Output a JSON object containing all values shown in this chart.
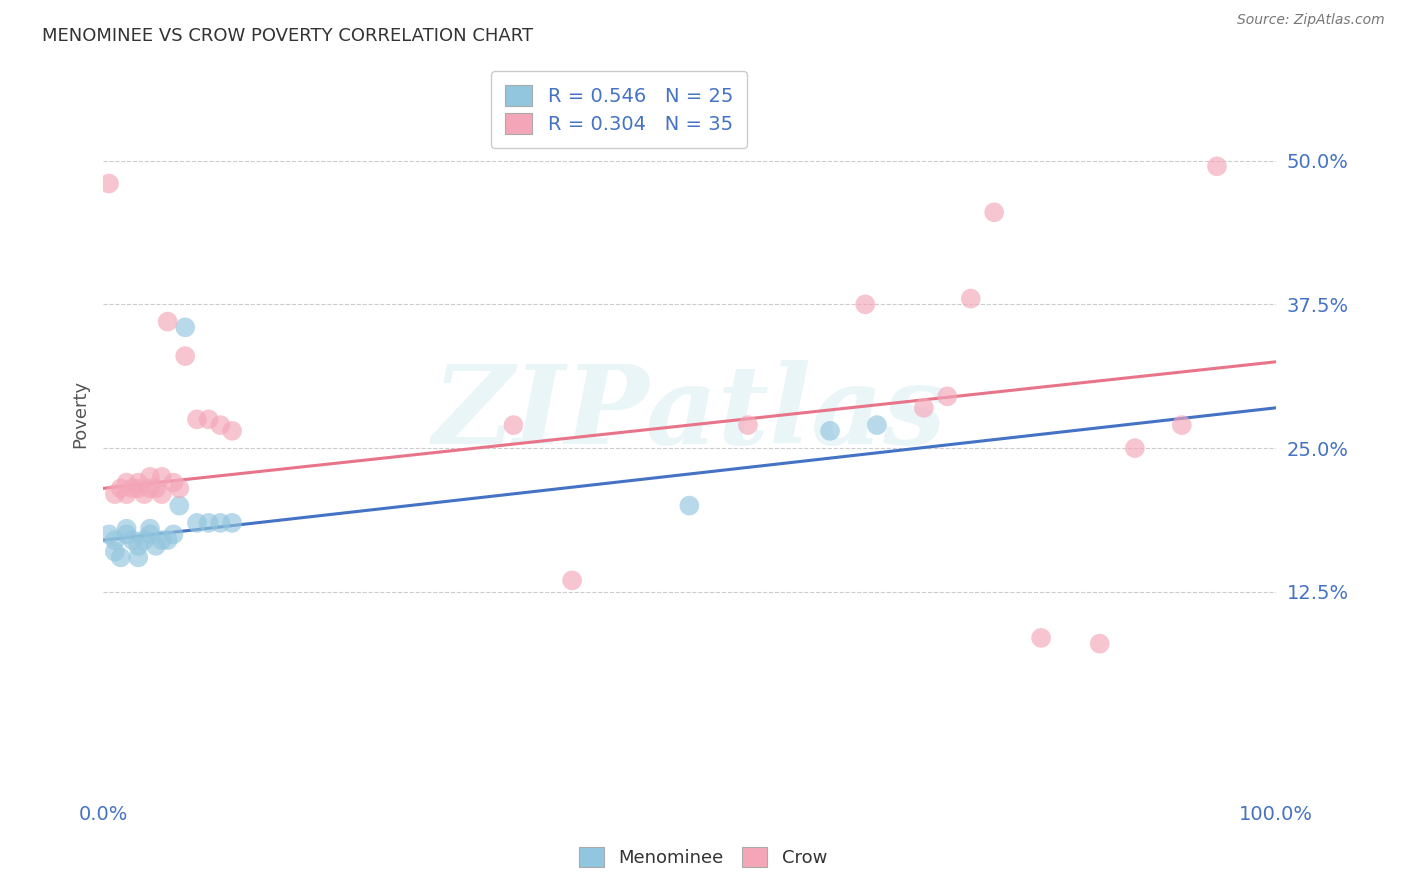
{
  "title": "MENOMINEE VS CROW POVERTY CORRELATION CHART",
  "source": "Source: ZipAtlas.com",
  "ylabel": "Poverty",
  "y_ticks": [
    0.125,
    0.25,
    0.375,
    0.5
  ],
  "y_tick_labels": [
    "12.5%",
    "25.0%",
    "37.5%",
    "50.0%"
  ],
  "watermark": "ZIPatlas",
  "menominee_R": 0.546,
  "menominee_N": 25,
  "crow_R": 0.304,
  "crow_N": 35,
  "menominee_color": "#92c5de",
  "crow_color": "#f4a6b8",
  "menominee_line_color": "#4472c4",
  "crow_line_color": "#e8748a",
  "legend_menominee_label": "Menominee",
  "legend_crow_label": "Crow",
  "background_color": "#ffffff",
  "grid_color": "#cccccc",
  "menominee_x": [
    0.005,
    0.01,
    0.01,
    0.015,
    0.02,
    0.02,
    0.025,
    0.03,
    0.03,
    0.035,
    0.04,
    0.04,
    0.045,
    0.05,
    0.055,
    0.06,
    0.065,
    0.07,
    0.08,
    0.09,
    0.1,
    0.11,
    0.5,
    0.62,
    0.66
  ],
  "menominee_y": [
    0.175,
    0.16,
    0.17,
    0.155,
    0.18,
    0.175,
    0.17,
    0.155,
    0.165,
    0.17,
    0.175,
    0.18,
    0.165,
    0.17,
    0.17,
    0.175,
    0.2,
    0.355,
    0.185,
    0.185,
    0.185,
    0.185,
    0.2,
    0.265,
    0.27
  ],
  "crow_x": [
    0.005,
    0.01,
    0.015,
    0.02,
    0.02,
    0.025,
    0.03,
    0.03,
    0.035,
    0.04,
    0.04,
    0.045,
    0.05,
    0.05,
    0.055,
    0.06,
    0.065,
    0.07,
    0.08,
    0.09,
    0.1,
    0.11,
    0.35,
    0.4,
    0.55,
    0.65,
    0.7,
    0.72,
    0.74,
    0.76,
    0.8,
    0.85,
    0.88,
    0.92,
    0.95
  ],
  "crow_y": [
    0.48,
    0.21,
    0.215,
    0.21,
    0.22,
    0.215,
    0.215,
    0.22,
    0.21,
    0.215,
    0.225,
    0.215,
    0.21,
    0.225,
    0.36,
    0.22,
    0.215,
    0.33,
    0.275,
    0.275,
    0.27,
    0.265,
    0.27,
    0.135,
    0.27,
    0.375,
    0.285,
    0.295,
    0.38,
    0.455,
    0.085,
    0.08,
    0.25,
    0.27,
    0.495
  ],
  "xlim": [
    0.0,
    1.0
  ],
  "ylim": [
    -0.02,
    0.58
  ],
  "blue_line_x0": 0.0,
  "blue_line_y0": 0.17,
  "blue_line_x1": 1.0,
  "blue_line_y1": 0.285,
  "pink_line_x0": 0.0,
  "pink_line_y0": 0.215,
  "pink_line_x1": 1.0,
  "pink_line_y1": 0.325
}
